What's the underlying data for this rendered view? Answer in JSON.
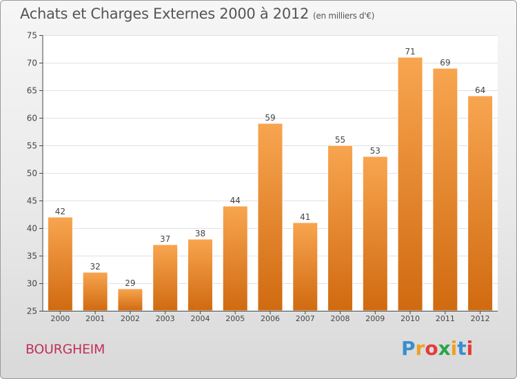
{
  "title": "Achats et Charges Externes 2000 à 2012",
  "subtitle": "(en milliers d'€)",
  "location": "BOURGHEIM",
  "logo": {
    "letters": [
      "P",
      "r",
      "o",
      "x",
      "i",
      "t",
      "i"
    ],
    "colors": [
      "#3a8fd0",
      "#f0a020",
      "#e43c3c",
      "#2ca44a",
      "#f0a020",
      "#3a8fd0",
      "#e43c3c"
    ]
  },
  "colors": {
    "bar_top": "#f8a550",
    "bar_bottom": "#d06a10",
    "bar_edge": "#ffffff"
  },
  "chart_data": {
    "type": "bar",
    "categories": [
      "2000",
      "2001",
      "2002",
      "2003",
      "2004",
      "2005",
      "2006",
      "2007",
      "2008",
      "2009",
      "2010",
      "2011",
      "2012"
    ],
    "values": [
      42,
      32,
      29,
      37,
      38,
      44,
      59,
      41,
      55,
      53,
      71,
      69,
      64
    ],
    "ylim": [
      25,
      75
    ],
    "yticks": [
      25,
      30,
      35,
      40,
      45,
      50,
      55,
      60,
      65,
      70,
      75
    ],
    "grid": true,
    "xlabel": "",
    "ylabel": ""
  }
}
